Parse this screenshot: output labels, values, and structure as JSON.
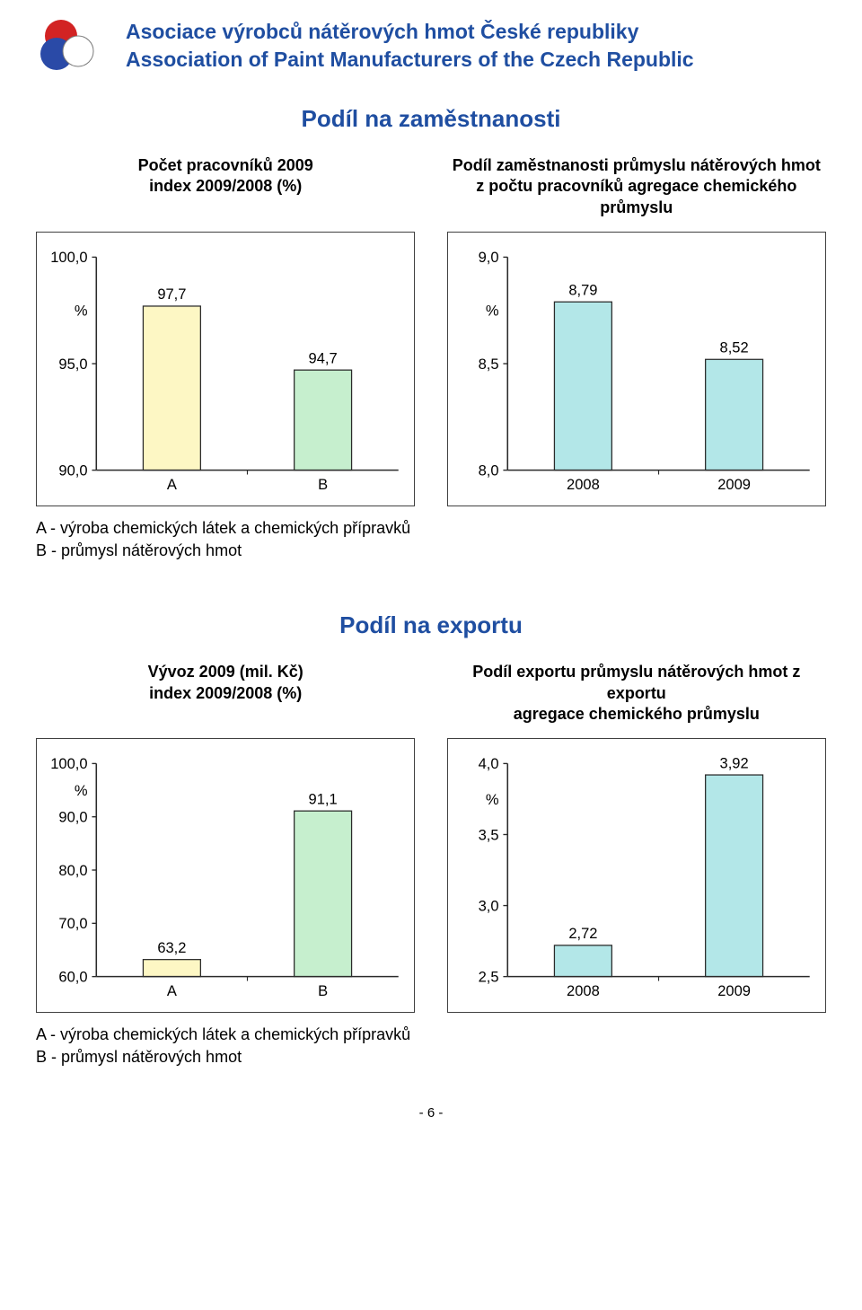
{
  "header": {
    "title_cz": "Asociace výrobců nátěrových hmot České republiky",
    "title_en": "Association of Paint Manufacturers of the Czech Republic",
    "title_color": "#1f4ea1",
    "logo": {
      "circle_a": "#d22323",
      "circle_b": "#2a4aa7",
      "circle_c_stroke": "#7a7a7a"
    }
  },
  "section1": {
    "title": "Podíl na zaměstnanosti",
    "title_color": "#1f4ea1",
    "left_subtitle_l1": "Počet pracovníků 2009",
    "left_subtitle_l2": "index 2009/2008 (%)",
    "right_subtitle_l1": "Podíl zaměstnanosti průmyslu nátěrových hmot",
    "right_subtitle_l2": "z počtu pracovníků agregace chemického průmyslu",
    "chart_left": {
      "type": "bar",
      "categories": [
        "A",
        "B"
      ],
      "values": [
        97.7,
        94.7
      ],
      "value_labels": [
        "97,7",
        "94,7"
      ],
      "bar_colors": [
        "#fdf7c4",
        "#c6efce"
      ],
      "bar_stroke": "#2a2a2a",
      "yticks": [
        90.0,
        95.0,
        100.0
      ],
      "ytick_labels": [
        "90,0",
        "95,0",
        "100,0"
      ],
      "ylim": [
        90.0,
        100.0
      ],
      "pct_label": "%",
      "bar_width": 0.38,
      "axis_color": "#2a2a2a",
      "label_fontsize": 17
    },
    "chart_right": {
      "type": "bar",
      "categories": [
        "2008",
        "2009"
      ],
      "values": [
        8.79,
        8.52
      ],
      "value_labels": [
        "8,79",
        "8,52"
      ],
      "bar_colors": [
        "#b3e7e8",
        "#b3e7e8"
      ],
      "bar_stroke": "#2a2a2a",
      "yticks": [
        8.0,
        8.5,
        9.0
      ],
      "ytick_labels": [
        "8,0",
        "8,5",
        "9,0"
      ],
      "ylim": [
        8.0,
        9.0
      ],
      "pct_label": "%",
      "bar_width": 0.38,
      "axis_color": "#2a2a2a",
      "label_fontsize": 17
    },
    "legend_a": "A - výroba chemických látek a chemických přípravků",
    "legend_b": "B - průmysl nátěrových hmot"
  },
  "section2": {
    "title": "Podíl na exportu",
    "title_color": "#1f4ea1",
    "left_subtitle_l1": "Vývoz 2009 (mil. Kč)",
    "left_subtitle_l2": "index 2009/2008 (%)",
    "right_subtitle_l1": "Podíl exportu průmyslu nátěrových hmot z exportu",
    "right_subtitle_l2": "agregace chemického průmyslu",
    "chart_left": {
      "type": "bar",
      "categories": [
        "A",
        "B"
      ],
      "values": [
        63.2,
        91.1
      ],
      "value_labels": [
        "63,2",
        "91,1"
      ],
      "bar_colors": [
        "#fdf7c4",
        "#c6efce"
      ],
      "bar_stroke": "#2a2a2a",
      "yticks": [
        60.0,
        70.0,
        80.0,
        90.0,
        100.0
      ],
      "ytick_labels": [
        "60,0",
        "70,0",
        "80,0",
        "90,0",
        "100,0"
      ],
      "ylim": [
        60.0,
        100.0
      ],
      "pct_label": "%",
      "bar_width": 0.38,
      "axis_color": "#2a2a2a",
      "label_fontsize": 17
    },
    "chart_right": {
      "type": "bar",
      "categories": [
        "2008",
        "2009"
      ],
      "values": [
        2.72,
        3.92
      ],
      "value_labels": [
        "2,72",
        "3,92"
      ],
      "bar_colors": [
        "#b3e7e8",
        "#b3e7e8"
      ],
      "bar_stroke": "#2a2a2a",
      "yticks": [
        2.5,
        3.0,
        3.5,
        4.0
      ],
      "ytick_labels": [
        "2,5",
        "3,0",
        "3,5",
        "4,0"
      ],
      "ylim": [
        2.5,
        4.0
      ],
      "pct_label": "%",
      "bar_width": 0.38,
      "axis_color": "#2a2a2a",
      "label_fontsize": 17
    },
    "legend_a": "A - výroba chemických látek a chemických přípravků",
    "legend_b": "B - průmysl nátěrových hmot"
  },
  "page_number": "- 6 -"
}
